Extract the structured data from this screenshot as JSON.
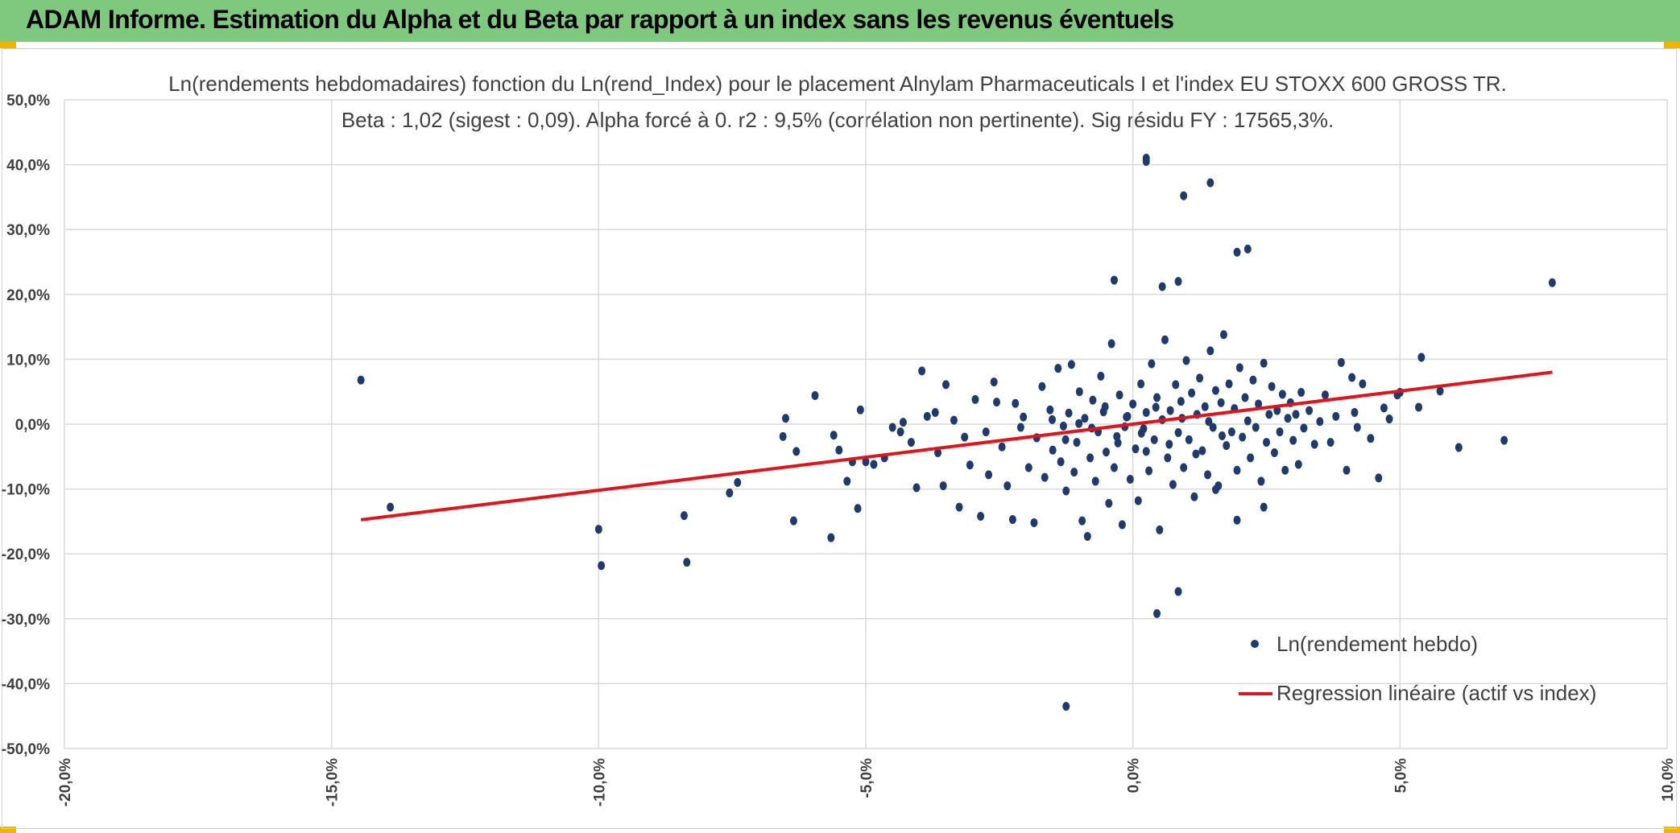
{
  "banner": {
    "title": "ADAM Informe. Estimation du Alpha et du Beta par rapport à un index sans les revenus éventuels"
  },
  "colors": {
    "banner": "#7fc97f",
    "points": "#1f3b6e",
    "regression": "#e0141b",
    "grid": "#d9d9d9"
  },
  "chart_data": {
    "type": "scatter",
    "title": "Ln(rendements hebdomadaires) fonction du Ln(rend_Index) pour le placement Alnylam Pharmaceuticals I et l'index EU STOXX 600 GROSS TR.",
    "subtitle": "Beta : 1,02 (sigest : 0,09). Alpha forcé à 0. r2 : 9,5% (corrélation non pertinente). Sig résidu FY : 17565,3%.",
    "xlabel": "",
    "ylabel": "",
    "xlim": [
      -0.2,
      0.1
    ],
    "ylim": [
      -0.5,
      0.5
    ],
    "x_ticks": [
      -0.2,
      -0.15,
      -0.1,
      -0.05,
      0.0,
      0.05,
      0.1
    ],
    "x_tick_labels": [
      "-20,0%",
      "-15,0%",
      "-10,0%",
      "-5,0%",
      "0,0%",
      "5,0%",
      "10,0%"
    ],
    "y_ticks": [
      0.5,
      0.4,
      0.3,
      0.2,
      0.1,
      0.0,
      -0.1,
      -0.2,
      -0.3,
      -0.4,
      -0.5
    ],
    "y_tick_labels": [
      "50,0%",
      "40,0%",
      "30,0%",
      "20,0%",
      "10,0%",
      "0,0%",
      "-10,0%",
      "-20,0%",
      "-30,0%",
      "-40,0%",
      "-50,0%"
    ],
    "grid": true,
    "legend_position": "bottom-right",
    "series": [
      {
        "name": "Ln(rendement hebdo)",
        "type": "scatter",
        "points": [
          [
            -0.1445,
            0.068
          ],
          [
            -0.139,
            -0.128
          ],
          [
            -0.1,
            -0.162
          ],
          [
            -0.0995,
            -0.218
          ],
          [
            -0.084,
            -0.141
          ],
          [
            -0.0835,
            -0.213
          ],
          [
            -0.0755,
            -0.106
          ],
          [
            -0.074,
            -0.09
          ],
          [
            -0.0655,
            -0.019
          ],
          [
            -0.065,
            0.009
          ],
          [
            -0.0635,
            -0.149
          ],
          [
            -0.063,
            -0.042
          ],
          [
            -0.0595,
            0.044
          ],
          [
            -0.0565,
            -0.175
          ],
          [
            -0.056,
            -0.017
          ],
          [
            -0.055,
            -0.04
          ],
          [
            -0.0535,
            -0.088
          ],
          [
            -0.0525,
            -0.058
          ],
          [
            -0.0515,
            -0.13
          ],
          [
            -0.051,
            0.022
          ],
          [
            -0.05,
            -0.058
          ],
          [
            -0.0485,
            -0.062
          ],
          [
            -0.0465,
            -0.052
          ],
          [
            -0.045,
            -0.005
          ],
          [
            -0.0435,
            -0.012
          ],
          [
            -0.043,
            0.003
          ],
          [
            -0.0415,
            -0.028
          ],
          [
            -0.0405,
            -0.098
          ],
          [
            -0.0395,
            0.082
          ],
          [
            -0.0385,
            0.012
          ],
          [
            -0.037,
            0.018
          ],
          [
            -0.0365,
            -0.044
          ],
          [
            -0.0355,
            -0.095
          ],
          [
            -0.035,
            0.061
          ],
          [
            -0.0335,
            0.006
          ],
          [
            -0.0325,
            -0.128
          ],
          [
            -0.0315,
            -0.02
          ],
          [
            -0.0305,
            -0.063
          ],
          [
            -0.0295,
            0.038
          ],
          [
            -0.0285,
            -0.142
          ],
          [
            -0.0275,
            -0.012
          ],
          [
            -0.027,
            -0.078
          ],
          [
            -0.026,
            0.065
          ],
          [
            -0.0255,
            0.034
          ],
          [
            -0.0245,
            -0.035
          ],
          [
            -0.0235,
            -0.095
          ],
          [
            -0.0225,
            -0.147
          ],
          [
            -0.022,
            0.032
          ],
          [
            -0.021,
            -0.005
          ],
          [
            -0.0205,
            0.011
          ],
          [
            -0.0195,
            -0.067
          ],
          [
            -0.0185,
            -0.152
          ],
          [
            -0.018,
            -0.021
          ],
          [
            -0.017,
            0.058
          ],
          [
            -0.0165,
            -0.082
          ],
          [
            -0.0155,
            0.022
          ],
          [
            -0.015,
            -0.04
          ],
          [
            -0.014,
            0.086
          ],
          [
            -0.0135,
            -0.058
          ],
          [
            -0.013,
            -0.003
          ],
          [
            -0.0125,
            -0.103
          ],
          [
            -0.012,
            0.017
          ],
          [
            -0.0115,
            0.092
          ],
          [
            -0.011,
            -0.074
          ],
          [
            -0.0105,
            -0.028
          ],
          [
            -0.01,
            0.05
          ],
          [
            -0.0095,
            -0.149
          ],
          [
            -0.009,
            0.009
          ],
          [
            -0.0085,
            -0.173
          ],
          [
            -0.008,
            -0.052
          ],
          [
            -0.0075,
            0.037
          ],
          [
            -0.007,
            -0.088
          ],
          [
            -0.0065,
            -0.012
          ],
          [
            -0.006,
            0.074
          ],
          [
            -0.0055,
            0.019
          ],
          [
            -0.005,
            -0.043
          ],
          [
            -0.0045,
            -0.122
          ],
          [
            -0.004,
            0.124
          ],
          [
            -0.0035,
            -0.067
          ],
          [
            -0.003,
            -0.019
          ],
          [
            -0.0025,
            0.045
          ],
          [
            -0.002,
            -0.155
          ],
          [
            -0.0015,
            -0.004
          ],
          [
            -0.001,
            0.012
          ],
          [
            -0.0005,
            -0.085
          ],
          [
            0.0,
            0.031
          ],
          [
            0.0005,
            -0.038
          ],
          [
            0.001,
            -0.118
          ],
          [
            0.0015,
            0.062
          ],
          [
            0.002,
            -0.007
          ],
          [
            0.0025,
            0.018
          ],
          [
            0.003,
            -0.072
          ],
          [
            0.0035,
            0.093
          ],
          [
            0.004,
            -0.024
          ],
          [
            0.0045,
            0.041
          ],
          [
            0.005,
            -0.163
          ],
          [
            0.0055,
            0.007
          ],
          [
            0.006,
            0.13
          ],
          [
            0.0065,
            -0.052
          ],
          [
            0.007,
            0.021
          ],
          [
            0.0075,
            -0.093
          ],
          [
            0.008,
            0.061
          ],
          [
            0.0085,
            -0.013
          ],
          [
            0.009,
            0.035
          ],
          [
            0.0095,
            -0.067
          ],
          [
            0.01,
            0.098
          ],
          [
            0.0105,
            -0.024
          ],
          [
            0.011,
            0.048
          ],
          [
            0.0115,
            -0.112
          ],
          [
            0.012,
            0.015
          ],
          [
            0.0125,
            0.071
          ],
          [
            0.013,
            -0.041
          ],
          [
            0.0135,
            0.027
          ],
          [
            0.014,
            -0.078
          ],
          [
            0.0145,
            0.113
          ],
          [
            0.015,
            -0.005
          ],
          [
            0.0155,
            0.052
          ],
          [
            0.016,
            -0.095
          ],
          [
            0.0165,
            0.033
          ],
          [
            0.017,
            0.138
          ],
          [
            0.0175,
            -0.033
          ],
          [
            0.018,
            0.062
          ],
          [
            0.0185,
            -0.012
          ],
          [
            0.019,
            0.024
          ],
          [
            0.0195,
            -0.071
          ],
          [
            0.02,
            0.087
          ],
          [
            0.0205,
            -0.02
          ],
          [
            0.021,
            0.041
          ],
          [
            0.0215,
            0.005
          ],
          [
            0.022,
            -0.052
          ],
          [
            0.0225,
            0.068
          ],
          [
            0.023,
            -0.005
          ],
          [
            0.0235,
            0.031
          ],
          [
            0.024,
            -0.088
          ],
          [
            0.0245,
            0.094
          ],
          [
            0.025,
            -0.028
          ],
          [
            0.0255,
            0.015
          ],
          [
            0.026,
            0.058
          ],
          [
            0.0265,
            -0.044
          ],
          [
            0.027,
            0.021
          ],
          [
            0.0275,
            -0.012
          ],
          [
            0.028,
            0.046
          ],
          [
            0.0285,
            -0.071
          ],
          [
            0.029,
            0.009
          ],
          [
            0.0295,
            0.033
          ],
          [
            0.03,
            -0.025
          ],
          [
            0.0305,
            0.015
          ],
          [
            0.031,
            -0.062
          ],
          [
            0.0315,
            0.049
          ],
          [
            0.032,
            -0.006
          ],
          [
            0.033,
            0.021
          ],
          [
            0.034,
            -0.031
          ],
          [
            0.035,
            0.004
          ],
          [
            0.036,
            0.045
          ],
          [
            0.037,
            -0.028
          ],
          [
            0.038,
            0.012
          ],
          [
            0.039,
            0.095
          ],
          [
            0.04,
            -0.071
          ],
          [
            0.041,
            0.072
          ],
          [
            0.0415,
            0.018
          ],
          [
            0.042,
            -0.005
          ],
          [
            0.043,
            0.062
          ],
          [
            0.0445,
            -0.022
          ],
          [
            0.046,
            -0.083
          ],
          [
            0.047,
            0.025
          ],
          [
            0.048,
            0.008
          ],
          [
            0.0495,
            0.045
          ],
          [
            0.05,
            0.049
          ],
          [
            0.0535,
            0.026
          ],
          [
            0.054,
            0.103
          ],
          [
            0.0575,
            0.051
          ],
          [
            0.061,
            -0.036
          ],
          [
            0.0695,
            -0.025
          ],
          [
            0.0785,
            0.218
          ],
          [
            0.0025,
            0.41
          ],
          [
            0.0025,
            0.405
          ],
          [
            0.0095,
            0.352
          ],
          [
            0.0145,
            0.372
          ],
          [
            0.0195,
            0.265
          ],
          [
            0.0215,
            0.27
          ],
          [
            -0.0035,
            0.222
          ],
          [
            0.0055,
            0.212
          ],
          [
            0.0085,
            0.22
          ],
          [
            0.0025,
            -0.042
          ],
          [
            0.0085,
            -0.258
          ],
          [
            0.0045,
            -0.292
          ],
          [
            -0.0125,
            -0.435
          ],
          [
            0.0195,
            -0.148
          ],
          [
            0.0245,
            -0.128
          ],
          [
            0.0155,
            -0.101
          ],
          [
            -0.0012,
            0.011
          ],
          [
            0.0016,
            -0.014
          ],
          [
            0.0043,
            0.026
          ],
          [
            0.0068,
            -0.031
          ],
          [
            0.0092,
            0.009
          ],
          [
            0.0118,
            -0.046
          ],
          [
            0.0142,
            0.004
          ],
          [
            0.0167,
            -0.018
          ],
          [
            -0.0028,
            -0.029
          ],
          [
            -0.0052,
            0.027
          ],
          [
            -0.0077,
            -0.006
          ],
          [
            -0.0101,
            0.001
          ],
          [
            -0.0126,
            -0.024
          ],
          [
            -0.0151,
            0.007
          ]
        ]
      },
      {
        "name": "Regression linéaire (actif vs index)",
        "type": "line",
        "x": [
          -0.1445,
          0.0785
        ],
        "y": [
          -0.1474,
          0.0801
        ]
      }
    ]
  }
}
